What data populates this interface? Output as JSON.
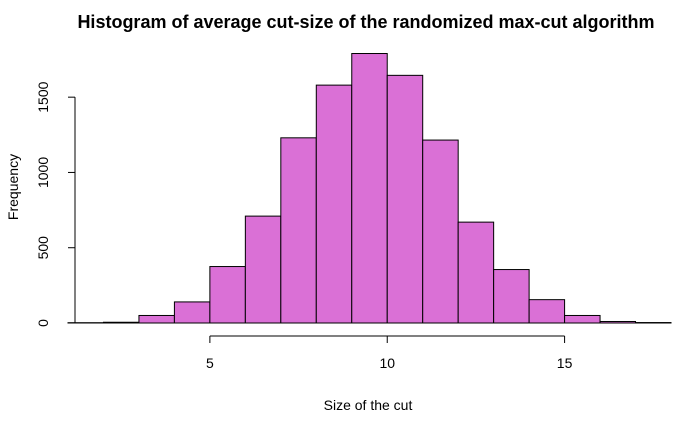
{
  "chart_data": {
    "type": "bar",
    "title": "Histogram of average cut-size of the randomized max-cut algorithm",
    "xlabel": "Size of the cut",
    "ylabel": "Frequency",
    "bin_edges": [
      1,
      2,
      3,
      4,
      5,
      6,
      7,
      8,
      9,
      10,
      11,
      12,
      13,
      14,
      15,
      16,
      17,
      18
    ],
    "values": [
      2,
      5,
      50,
      140,
      375,
      710,
      1230,
      1580,
      1790,
      1645,
      1215,
      670,
      355,
      155,
      50,
      10,
      3
    ],
    "xlim": [
      1,
      18
    ],
    "ylim": [
      0,
      1800
    ],
    "x_ticks": [
      5,
      10,
      15
    ],
    "y_ticks": [
      0,
      500,
      1000,
      1500
    ],
    "bar_color": "#da70d6",
    "edge_color": "#000000",
    "grid": false,
    "legend": "none"
  }
}
